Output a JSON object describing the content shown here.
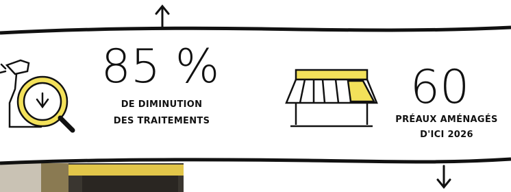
{
  "stats": [
    {
      "value": "85 %",
      "lines": [
        "DE DIMINUTION",
        "DES TRAITEMENTS"
      ]
    },
    {
      "value": "60",
      "lines": [
        "PRÉAUX AMÉNAGÉS",
        "D'ICI 2026"
      ]
    }
  ]
}
